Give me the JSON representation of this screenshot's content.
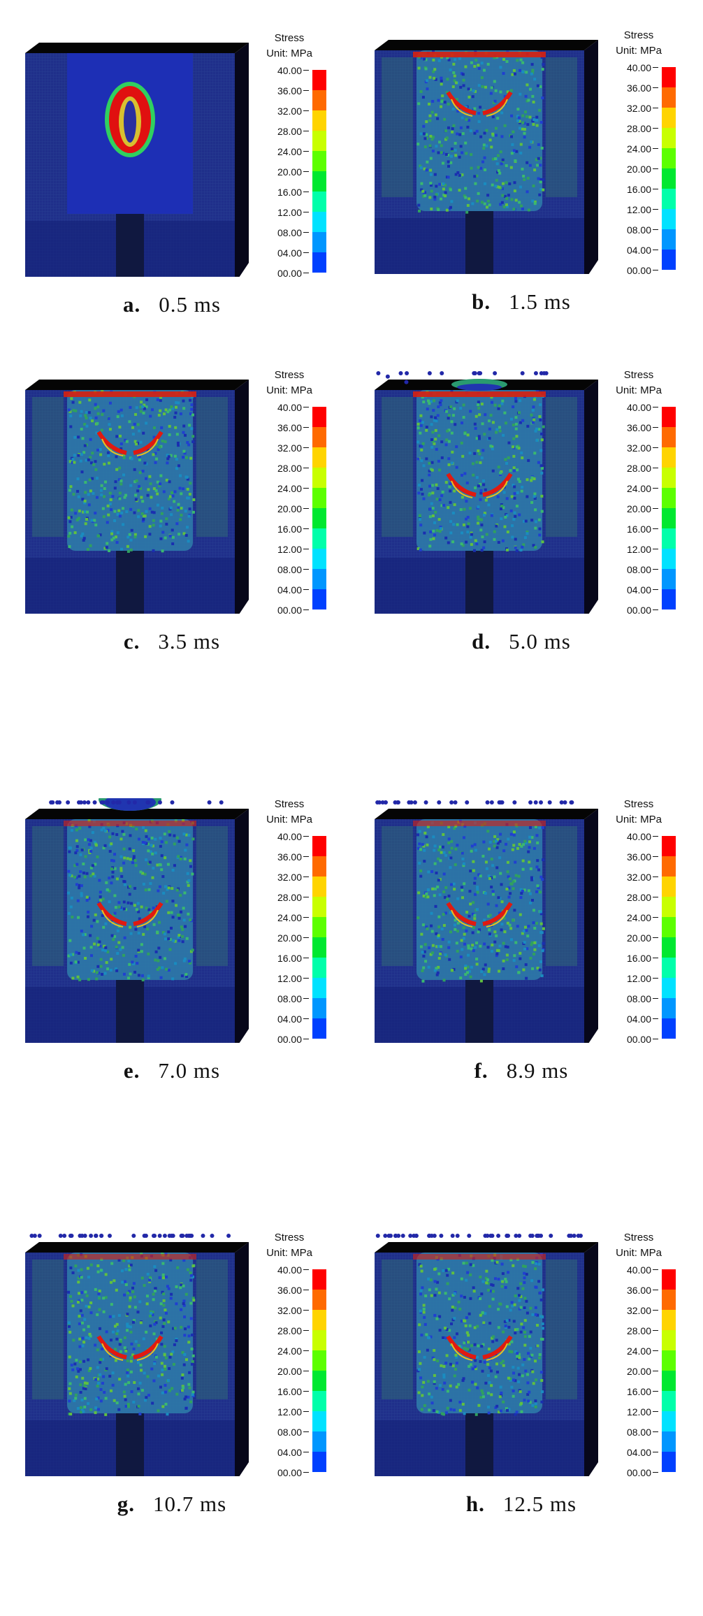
{
  "legend": {
    "title": "Stress",
    "unit": "Unit: MPa",
    "ticks": [
      "40.00",
      "36.00",
      "32.00",
      "28.00",
      "24.00",
      "20.00",
      "16.00",
      "12.00",
      "08.00",
      "04.00",
      "00.00"
    ],
    "colors": [
      "#ff0000",
      "#ff6a00",
      "#ffd400",
      "#c8ff00",
      "#5cff00",
      "#00e830",
      "#00ffaa",
      "#00e2ff",
      "#0096ff",
      "#0040ff"
    ]
  },
  "panels": [
    {
      "letter": "a.",
      "time": "0.5 ms",
      "stage": 0
    },
    {
      "letter": "b.",
      "time": "1.5 ms",
      "stage": 1
    },
    {
      "letter": "c.",
      "time": "3.5 ms",
      "stage": 2
    },
    {
      "letter": "d.",
      "time": "5.0 ms",
      "stage": 3
    },
    {
      "letter": "e.",
      "time": "7.0 ms",
      "stage": 4
    },
    {
      "letter": "f.",
      "time": "8.9 ms",
      "stage": 5
    },
    {
      "letter": "g.",
      "time": "10.7 ms",
      "stage": 6
    },
    {
      "letter": "h.",
      "time": "12.5 ms",
      "stage": 7
    }
  ]
}
